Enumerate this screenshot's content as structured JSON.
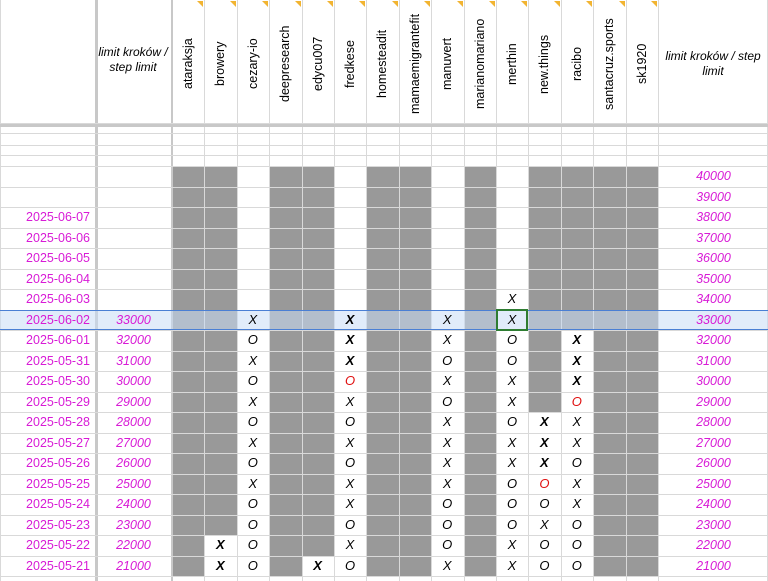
{
  "header": {
    "limit_label_left": "limit kroków / step limit",
    "limit_label_right": "limit kroków / step limit",
    "users": [
      "ataraksja",
      "browery",
      "cezary-io",
      "deepresearch",
      "edycu007",
      "fredkese",
      "homesteadit",
      "mamaemigrantefit",
      "manuvert",
      "marianomariano",
      "merthin",
      "new.things",
      "racibo",
      "santacruz.sports",
      "sk1920"
    ]
  },
  "right_only_limits": [
    "40000",
    "39000"
  ],
  "rows": [
    {
      "date": "2025-06-07",
      "limit": "",
      "right": "38000"
    },
    {
      "date": "2025-06-06",
      "limit": "",
      "right": "37000"
    },
    {
      "date": "2025-06-05",
      "limit": "",
      "right": "36000"
    },
    {
      "date": "2025-06-04",
      "limit": "",
      "right": "35000"
    },
    {
      "date": "2025-06-03",
      "limit": "",
      "right": "34000"
    },
    {
      "date": "2025-06-02",
      "limit": "33000",
      "right": "33000"
    },
    {
      "date": "2025-06-01",
      "limit": "32000",
      "right": "32000"
    },
    {
      "date": "2025-05-31",
      "limit": "31000",
      "right": "31000"
    },
    {
      "date": "2025-05-30",
      "limit": "30000",
      "right": "30000"
    },
    {
      "date": "2025-05-29",
      "limit": "29000",
      "right": "29000"
    },
    {
      "date": "2025-05-28",
      "limit": "28000",
      "right": "28000"
    },
    {
      "date": "2025-05-27",
      "limit": "27000",
      "right": "27000"
    },
    {
      "date": "2025-05-26",
      "limit": "26000",
      "right": "26000"
    },
    {
      "date": "2025-05-25",
      "limit": "25000",
      "right": "25000"
    },
    {
      "date": "2025-05-24",
      "limit": "24000",
      "right": "24000"
    },
    {
      "date": "2025-05-23",
      "limit": "23000",
      "right": "23000"
    },
    {
      "date": "2025-05-22",
      "limit": "22000",
      "right": "22000"
    },
    {
      "date": "2025-05-21",
      "limit": "21000",
      "right": "21000"
    }
  ],
  "marks": [
    {
      "row": 4,
      "col": 10,
      "v": "X"
    },
    {
      "row": 5,
      "col": 2,
      "v": "X"
    },
    {
      "row": 5,
      "col": 5,
      "v": "X",
      "bold": true
    },
    {
      "row": 5,
      "col": 8,
      "v": "X"
    },
    {
      "row": 5,
      "col": 10,
      "v": "X"
    },
    {
      "row": 6,
      "col": 2,
      "v": "O"
    },
    {
      "row": 6,
      "col": 5,
      "v": "X",
      "bold": true
    },
    {
      "row": 6,
      "col": 8,
      "v": "X"
    },
    {
      "row": 6,
      "col": 10,
      "v": "O"
    },
    {
      "row": 6,
      "col": 12,
      "v": "X",
      "bold": true
    },
    {
      "row": 7,
      "col": 2,
      "v": "X"
    },
    {
      "row": 7,
      "col": 5,
      "v": "X",
      "bold": true
    },
    {
      "row": 7,
      "col": 8,
      "v": "O"
    },
    {
      "row": 7,
      "col": 10,
      "v": "O"
    },
    {
      "row": 7,
      "col": 12,
      "v": "X",
      "bold": true
    },
    {
      "row": 8,
      "col": 2,
      "v": "O"
    },
    {
      "row": 8,
      "col": 5,
      "v": "O",
      "red": true
    },
    {
      "row": 8,
      "col": 8,
      "v": "X"
    },
    {
      "row": 8,
      "col": 10,
      "v": "X"
    },
    {
      "row": 8,
      "col": 12,
      "v": "X",
      "bold": true
    },
    {
      "row": 9,
      "col": 2,
      "v": "X"
    },
    {
      "row": 9,
      "col": 5,
      "v": "X"
    },
    {
      "row": 9,
      "col": 8,
      "v": "O"
    },
    {
      "row": 9,
      "col": 10,
      "v": "X"
    },
    {
      "row": 9,
      "col": 12,
      "v": "O",
      "red": true
    },
    {
      "row": 10,
      "col": 2,
      "v": "O"
    },
    {
      "row": 10,
      "col": 5,
      "v": "O"
    },
    {
      "row": 10,
      "col": 8,
      "v": "X"
    },
    {
      "row": 10,
      "col": 10,
      "v": "O"
    },
    {
      "row": 10,
      "col": 11,
      "v": "X",
      "bold": true
    },
    {
      "row": 10,
      "col": 12,
      "v": "X"
    },
    {
      "row": 11,
      "col": 2,
      "v": "X"
    },
    {
      "row": 11,
      "col": 5,
      "v": "X"
    },
    {
      "row": 11,
      "col": 8,
      "v": "X"
    },
    {
      "row": 11,
      "col": 10,
      "v": "X"
    },
    {
      "row": 11,
      "col": 11,
      "v": "X",
      "bold": true
    },
    {
      "row": 11,
      "col": 12,
      "v": "X"
    },
    {
      "row": 12,
      "col": 2,
      "v": "O"
    },
    {
      "row": 12,
      "col": 5,
      "v": "O"
    },
    {
      "row": 12,
      "col": 8,
      "v": "X"
    },
    {
      "row": 12,
      "col": 10,
      "v": "X"
    },
    {
      "row": 12,
      "col": 11,
      "v": "X",
      "bold": true
    },
    {
      "row": 12,
      "col": 12,
      "v": "O"
    },
    {
      "row": 13,
      "col": 2,
      "v": "X"
    },
    {
      "row": 13,
      "col": 5,
      "v": "X"
    },
    {
      "row": 13,
      "col": 8,
      "v": "X"
    },
    {
      "row": 13,
      "col": 10,
      "v": "O"
    },
    {
      "row": 13,
      "col": 11,
      "v": "O",
      "red": true
    },
    {
      "row": 13,
      "col": 12,
      "v": "X"
    },
    {
      "row": 14,
      "col": 2,
      "v": "O"
    },
    {
      "row": 14,
      "col": 5,
      "v": "X"
    },
    {
      "row": 14,
      "col": 8,
      "v": "O"
    },
    {
      "row": 14,
      "col": 10,
      "v": "O"
    },
    {
      "row": 14,
      "col": 11,
      "v": "O"
    },
    {
      "row": 14,
      "col": 12,
      "v": "X"
    },
    {
      "row": 15,
      "col": 2,
      "v": "O"
    },
    {
      "row": 15,
      "col": 5,
      "v": "O"
    },
    {
      "row": 15,
      "col": 8,
      "v": "O"
    },
    {
      "row": 15,
      "col": 10,
      "v": "O"
    },
    {
      "row": 15,
      "col": 11,
      "v": "X"
    },
    {
      "row": 15,
      "col": 12,
      "v": "O"
    },
    {
      "row": 16,
      "col": 1,
      "v": "X",
      "bold": true
    },
    {
      "row": 16,
      "col": 2,
      "v": "O"
    },
    {
      "row": 16,
      "col": 5,
      "v": "X"
    },
    {
      "row": 16,
      "col": 8,
      "v": "O"
    },
    {
      "row": 16,
      "col": 10,
      "v": "X"
    },
    {
      "row": 16,
      "col": 11,
      "v": "O"
    },
    {
      "row": 16,
      "col": 12,
      "v": "O"
    },
    {
      "row": 17,
      "col": 1,
      "v": "X",
      "bold": true
    },
    {
      "row": 17,
      "col": 2,
      "v": "O"
    },
    {
      "row": 17,
      "col": 4,
      "v": "X",
      "bold": true
    },
    {
      "row": 17,
      "col": 5,
      "v": "O"
    },
    {
      "row": 17,
      "col": 8,
      "v": "X"
    },
    {
      "row": 17,
      "col": 10,
      "v": "X"
    },
    {
      "row": 17,
      "col": 11,
      "v": "O"
    },
    {
      "row": 17,
      "col": 12,
      "v": "O"
    }
  ],
  "colors": {
    "date": "#d81bd6",
    "grey": "#999999",
    "selection": "#4a7fd4",
    "selection_fill": "#e8f0fb",
    "mark_red": "#e01010"
  }
}
